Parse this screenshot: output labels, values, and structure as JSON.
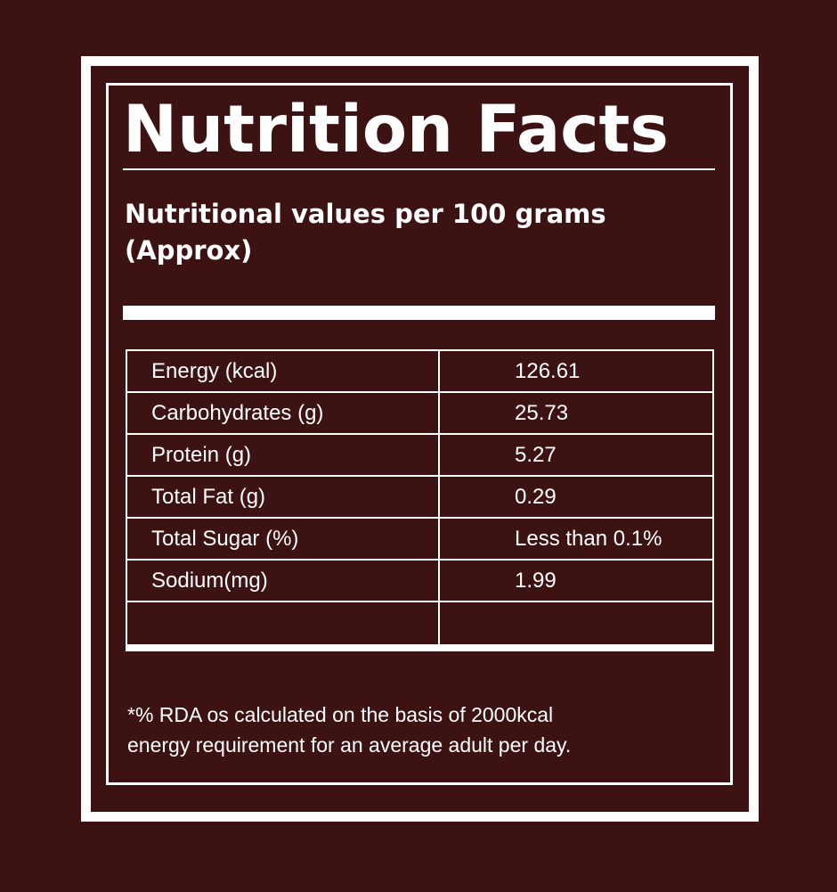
{
  "label": {
    "title": "Nutrition Facts",
    "subtitle_line1": "Nutritional values per 100 grams",
    "subtitle_line2": "(Approx)",
    "rows": [
      {
        "nutrient": "Energy (kcal)",
        "value": "126.61"
      },
      {
        "nutrient": "Carbohydrates (g)",
        "value": "25.73"
      },
      {
        "nutrient": "Protein (g)",
        "value": "5.27"
      },
      {
        "nutrient": "Total Fat (g)",
        "value": "0.29"
      },
      {
        "nutrient": "Total Sugar (%)",
        "value": "Less than 0.1%"
      },
      {
        "nutrient": "Sodium(mg)",
        "value": "1.99"
      },
      {
        "nutrient": "",
        "value": ""
      }
    ],
    "footnote_line1": "*% RDA os calculated on the basis of 2000kcal",
    "footnote_line2": "energy requirement for an average adult per day."
  },
  "colors": {
    "background": "#3d1213",
    "foreground": "#ffffff"
  }
}
